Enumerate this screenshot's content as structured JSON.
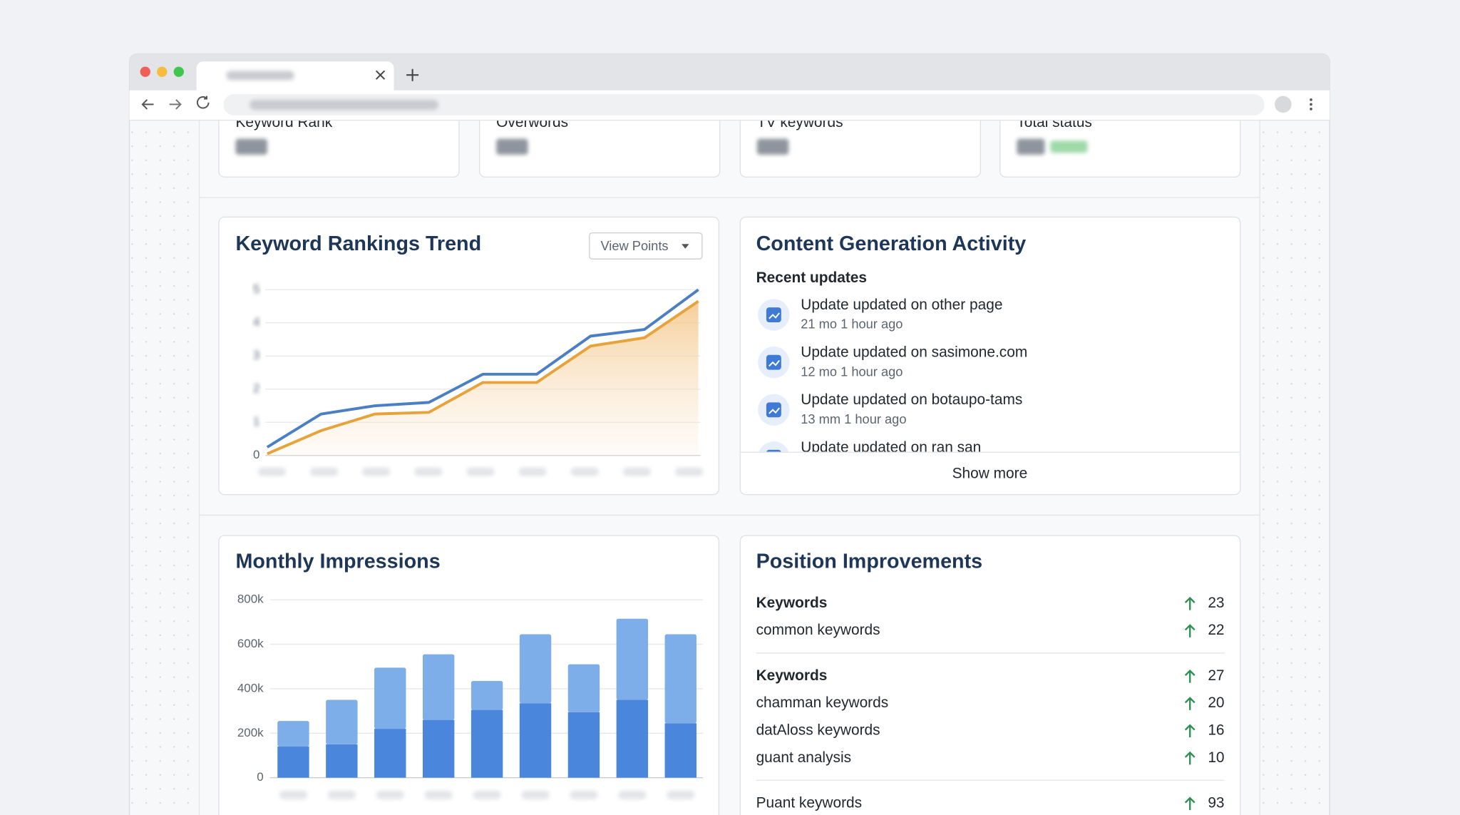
{
  "stat_cards": [
    {
      "label": "Keyword Rank"
    },
    {
      "label": "Overwords"
    },
    {
      "label": "TV keywords"
    },
    {
      "label": "Total status"
    }
  ],
  "chart_data": [
    {
      "type": "line",
      "title": "Keyword Rankings Trend",
      "control": "View Points",
      "categories": [
        null,
        null,
        null,
        null,
        null,
        null,
        null,
        null,
        null
      ],
      "ylim": [
        0,
        5
      ],
      "yticks": [
        0,
        1,
        2,
        3,
        4,
        5
      ],
      "grid": true,
      "series": [
        {
          "color": "#4a7fc4",
          "values": [
            0.25,
            1.25,
            1.5,
            1.6,
            2.45,
            2.45,
            3.6,
            3.8,
            5
          ]
        },
        {
          "color": "#e8a23a",
          "area": true,
          "values": [
            0.05,
            0.75,
            1.25,
            1.3,
            2.2,
            2.2,
            3.3,
            3.55,
            4.65
          ]
        }
      ]
    },
    {
      "type": "bar",
      "stacked": true,
      "title": "Monthly Impressions",
      "categories": [
        null,
        null,
        null,
        null,
        null,
        null,
        null,
        null,
        null
      ],
      "ylim": [
        0,
        800000
      ],
      "yticks": [
        0,
        {
          "value": 200000,
          "label": "200k"
        },
        {
          "value": 400000,
          "label": "400k"
        },
        {
          "value": 600000,
          "label": "600k"
        },
        {
          "value": 800000,
          "label": "800k"
        }
      ],
      "grid": true,
      "series": [
        {
          "color": "#4a86dc",
          "values": [
            140000,
            150000,
            220000,
            260000,
            305000,
            335000,
            295000,
            350000,
            245000
          ]
        },
        {
          "color": "#7eaeea",
          "values": [
            115000,
            200000,
            275000,
            295000,
            130000,
            310000,
            215000,
            365000,
            400000
          ]
        }
      ]
    }
  ],
  "activity": {
    "title": "Content Generation Activity",
    "subtitle": "Recent updates",
    "items": [
      {
        "title": "Update updated on other page",
        "meta": "21 mo 1 hour ago"
      },
      {
        "title": "Update updated on sasimone.com",
        "meta": "12 mo 1 hour ago"
      },
      {
        "title": "Update updated on botaupo-tams",
        "meta": "13 mm 1 hour ago"
      },
      {
        "title": "Update updated on ran san"
      }
    ],
    "more": "Show more"
  },
  "improvements": {
    "title": "Position Improvements",
    "groups": [
      [
        {
          "label": "Keywords",
          "value": 23,
          "bold": true
        },
        {
          "label": "common keywords",
          "value": 22
        }
      ],
      [
        {
          "label": "Keywords",
          "value": 27,
          "bold": true
        },
        {
          "label": "chamman keywords",
          "value": 20
        },
        {
          "label": "datAloss keywords",
          "value": 16
        },
        {
          "label": "guant analysis",
          "value": 10
        }
      ],
      [
        {
          "label": "Puant keywords",
          "value": 93
        }
      ]
    ]
  }
}
